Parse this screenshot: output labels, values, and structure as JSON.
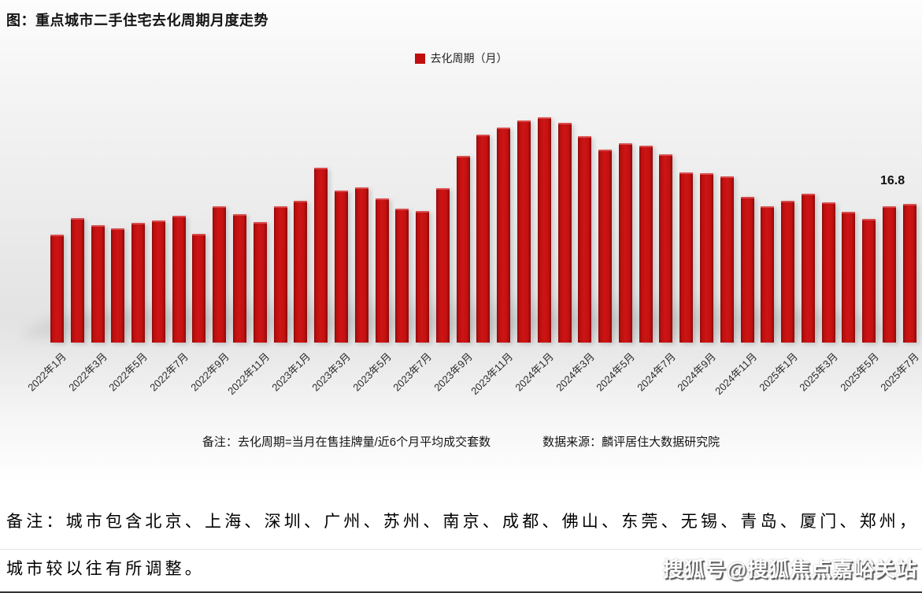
{
  "header": {
    "title": "图：重点城市二手住宅去化周期月度走势"
  },
  "legend": {
    "label": "去化周期（月）",
    "marker_color": "#c00d0d"
  },
  "chart_data": {
    "type": "bar",
    "title": "图：重点城市二手住宅去化周期月度走势",
    "series_name": "去化周期（月）",
    "categories": [
      "2022年1月",
      "2022年2月",
      "2022年3月",
      "2022年4月",
      "2022年5月",
      "2022年6月",
      "2022年7月",
      "2022年8月",
      "2022年9月",
      "2022年10月",
      "2022年11月",
      "2022年12月",
      "2023年1月",
      "2023年2月",
      "2023年3月",
      "2023年4月",
      "2023年5月",
      "2023年6月",
      "2023年7月",
      "2023年8月",
      "2023年9月",
      "2023年10月",
      "2023年11月",
      "2023年12月",
      "2024年1月",
      "2024年2月",
      "2024年3月",
      "2024年4月",
      "2024年5月",
      "2024年6月",
      "2024年7月",
      "2024年8月",
      "2024年9月",
      "2024年10月",
      "2024年11月",
      "2024年12月",
      "2025年1月",
      "2025年2月",
      "2025年3月",
      "2025年4月",
      "2025年5月",
      "2025年6月",
      "2025年7月"
    ],
    "values": [
      13.0,
      15.0,
      14.2,
      13.8,
      14.5,
      14.7,
      15.3,
      13.1,
      16.5,
      15.5,
      14.6,
      16.5,
      17.2,
      21.2,
      18.4,
      18.8,
      17.4,
      16.2,
      15.9,
      18.7,
      22.6,
      25.2,
      26.1,
      27.0,
      27.4,
      26.7,
      25.1,
      23.4,
      24.2,
      23.9,
      22.8,
      20.6,
      20.5,
      20.1,
      17.6,
      16.5,
      17.2,
      18.0,
      17.0,
      15.8,
      14.9,
      16.5,
      16.8
    ],
    "x_tick_labels": [
      "2022年1月",
      "2022年3月",
      "2022年5月",
      "2022年7月",
      "2022年9月",
      "2022年11月",
      "2023年1月",
      "2023年3月",
      "2023年5月",
      "2023年7月",
      "2023年9月",
      "2023年11月",
      "2024年1月",
      "2024年3月",
      "2024年5月",
      "2024年7月",
      "2024年9月",
      "2024年11月",
      "2025年1月",
      "2025年3月",
      "2025年5月",
      "2025年7月"
    ],
    "x_tick_step": 2,
    "ylim": [
      0,
      28
    ],
    "y_axis_visible": false,
    "grid": false,
    "legend_position": "top-center",
    "bar_color": "#c31111",
    "last_value_label": "16.8",
    "last_value_category": "2025年7月"
  },
  "chart_footnote": {
    "note": "备注：去化周期=当月在售挂牌量/近6个月平均成交套数",
    "source": "数据来源：麟评居住大数据研究院"
  },
  "bottom_note": {
    "line1": "备注：城市包含北京、上海、深圳、广州、苏州、南京、成都、佛山、东莞、无锡、青岛、厦门、郑州，",
    "line2": "城市较以往有所调整。"
  },
  "watermark": {
    "text": "搜狐号@搜狐焦点嘉峪关站"
  }
}
